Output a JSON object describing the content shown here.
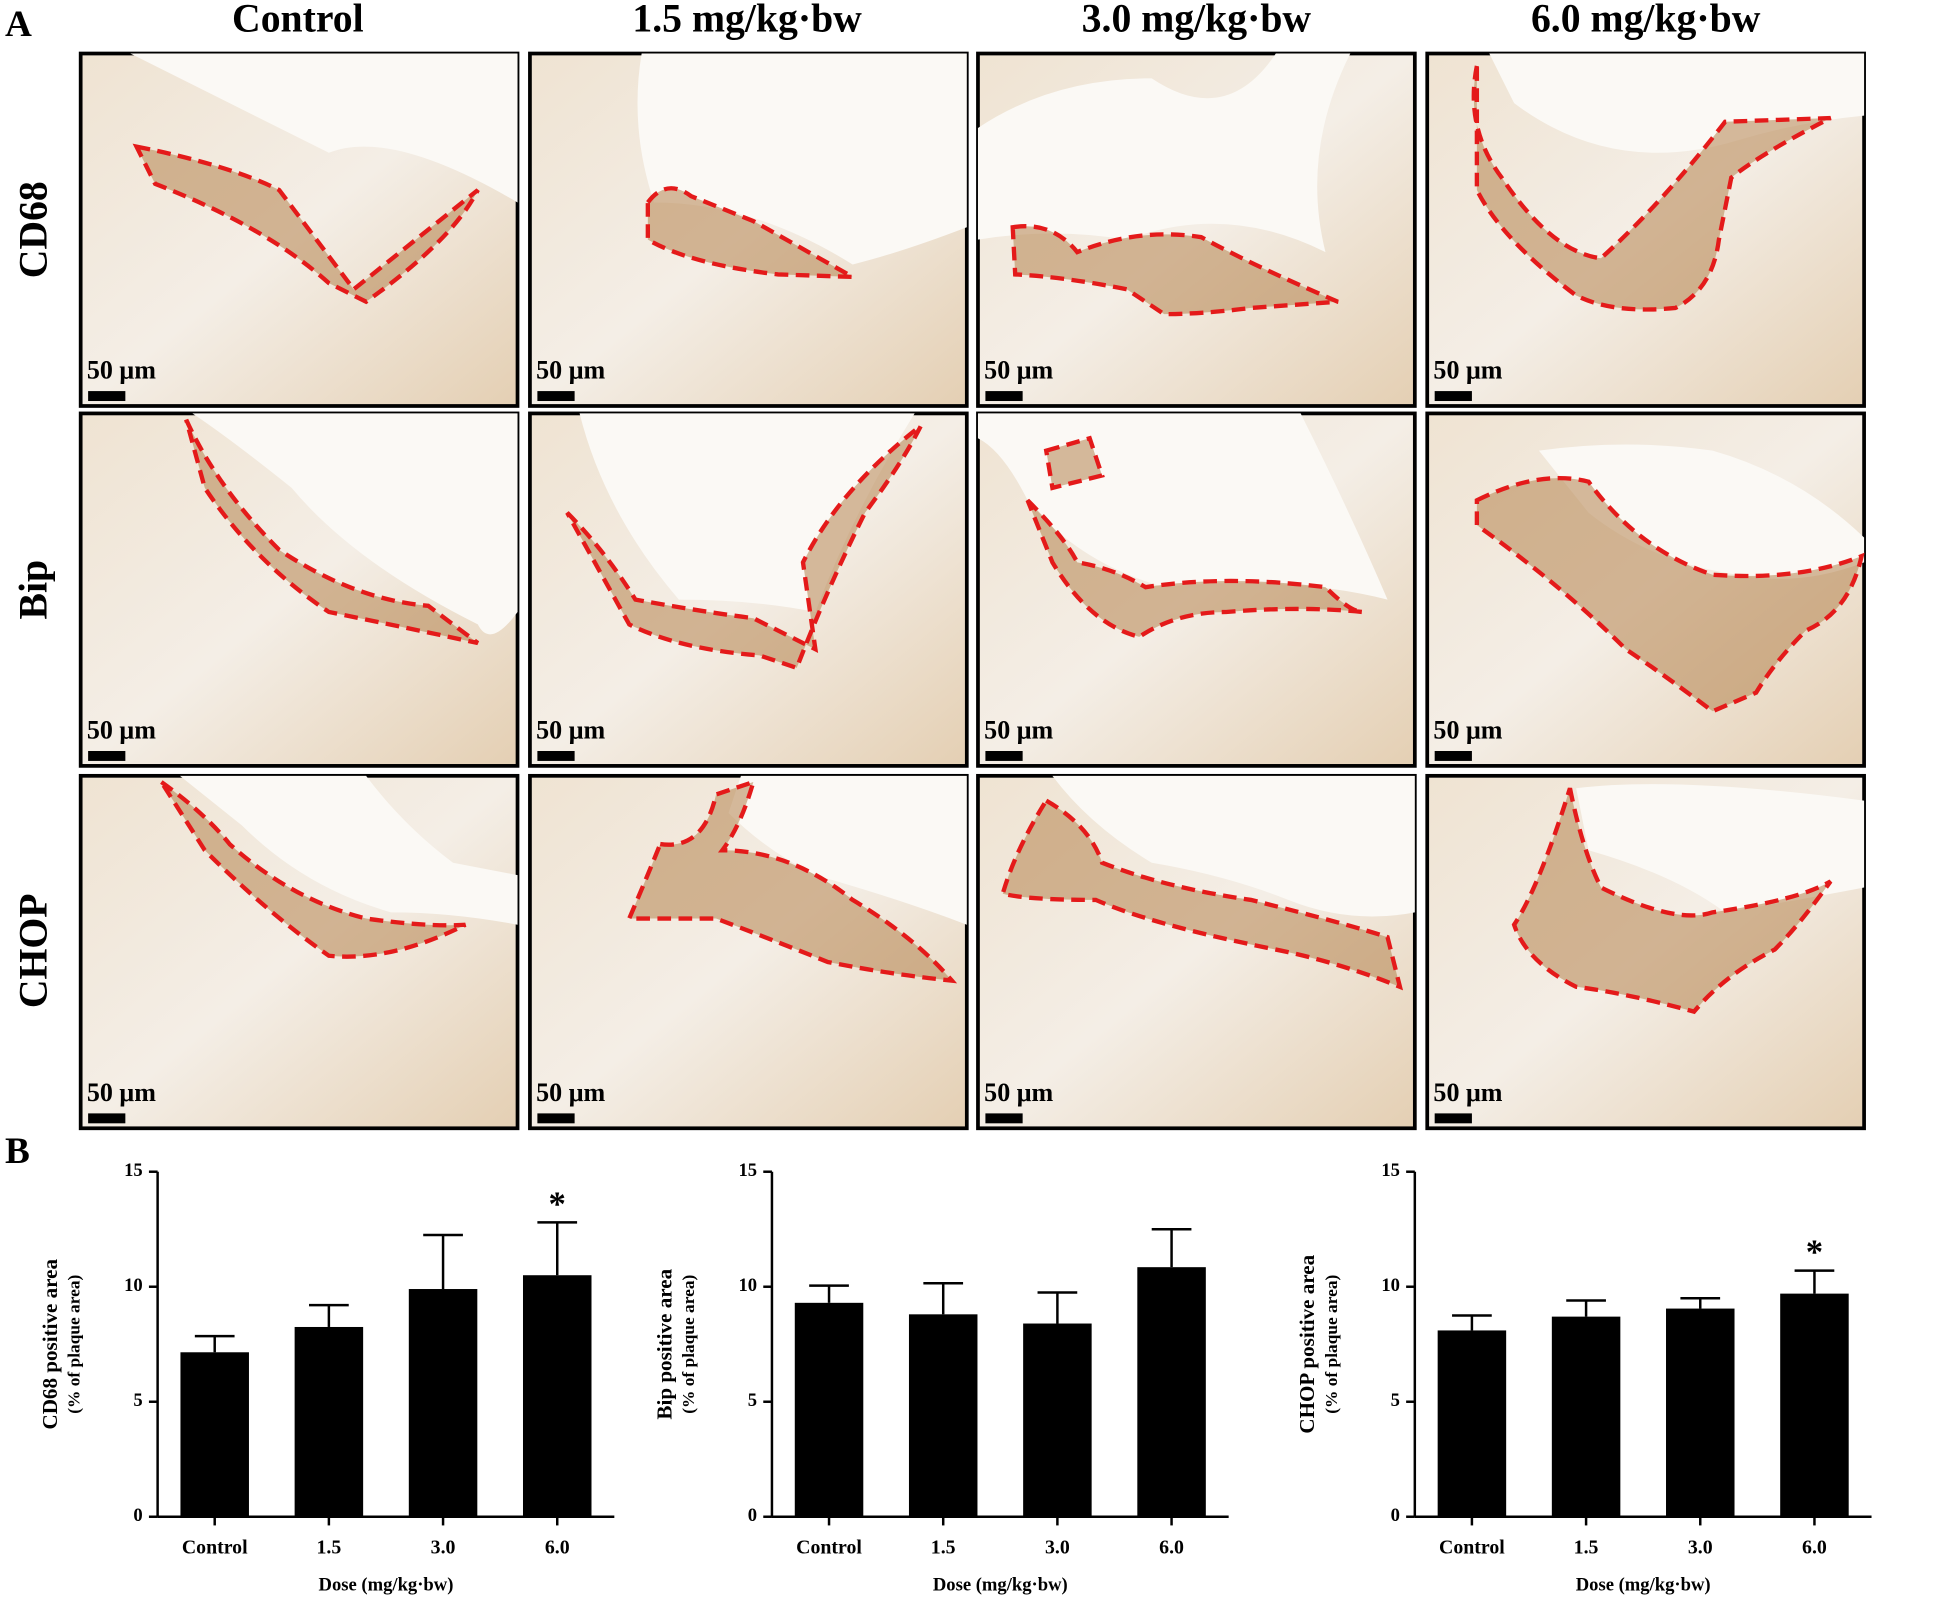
{
  "panel_a": {
    "label": "A",
    "columns": [
      "Control",
      "1.5 mg/kg·bw",
      "3.0 mg/kg·bw",
      "6.0 mg/kg·bw"
    ],
    "rows": [
      "CD68",
      "Bip",
      "CHOP"
    ],
    "scale_bar": "50 μm"
  },
  "panel_b": {
    "label": "B"
  },
  "chart_data": [
    {
      "type": "bar",
      "y_label": [
        "CD68 positive area",
        "(% of plaque area)"
      ],
      "x_label": "Dose (mg/kg·bw)",
      "categories": [
        "Control",
        "1.5",
        "3.0",
        "6.0"
      ],
      "values": [
        7.15,
        8.25,
        9.9,
        10.5
      ],
      "errors": [
        0.7,
        0.95,
        2.35,
        2.3
      ],
      "significance": [
        null,
        null,
        null,
        "*"
      ],
      "color": "#000000",
      "ylim": [
        0,
        15
      ],
      "yticks": [
        0,
        5,
        10,
        15
      ]
    },
    {
      "type": "bar",
      "y_label": [
        "Bip positive area",
        "(% of plaque area)"
      ],
      "x_label": "Dose (mg/kg·bw)",
      "categories": [
        "Control",
        "1.5",
        "3.0",
        "6.0"
      ],
      "values": [
        9.3,
        8.8,
        8.4,
        10.85
      ],
      "errors": [
        0.75,
        1.35,
        1.35,
        1.65
      ],
      "significance": [
        null,
        null,
        null,
        null
      ],
      "color": "#000000",
      "ylim": [
        0,
        15
      ],
      "yticks": [
        0,
        5,
        10,
        15
      ]
    },
    {
      "type": "bar",
      "y_label": [
        "CHOP positive area",
        "(% of plaque area)"
      ],
      "x_label": "Dose (mg/kg·bw)",
      "categories": [
        "Control",
        "1.5",
        "3.0",
        "6.0"
      ],
      "values": [
        8.1,
        8.7,
        9.05,
        9.7
      ],
      "errors": [
        0.65,
        0.7,
        0.45,
        1.0
      ],
      "significance": [
        null,
        null,
        null,
        "*"
      ],
      "color": "#000000",
      "ylim": [
        0,
        15
      ],
      "yticks": [
        0,
        5,
        10,
        15
      ]
    }
  ]
}
